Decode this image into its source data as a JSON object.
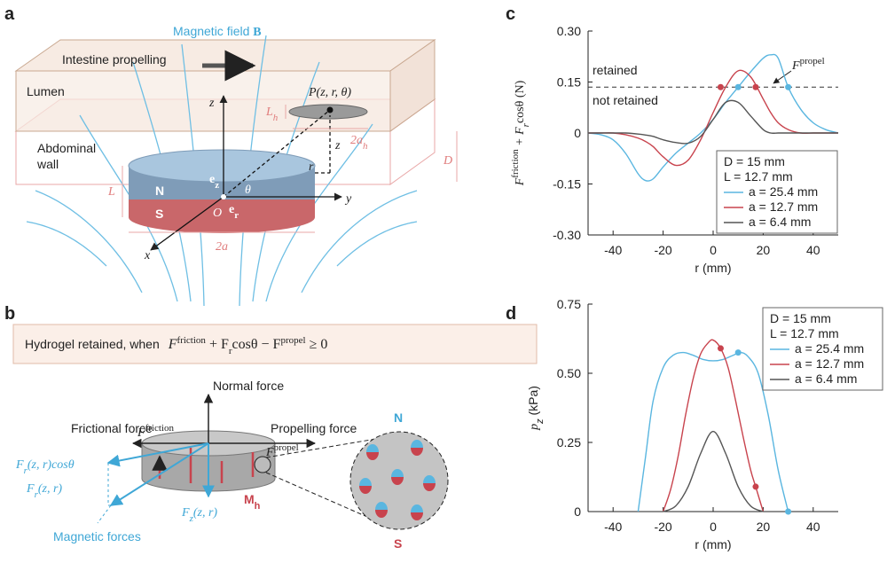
{
  "panel_labels": [
    "a",
    "b",
    "c",
    "d"
  ],
  "diagram_a": {
    "field": [
      "Magnetic field ",
      "B"
    ],
    "propelling": "Intestine propelling",
    "lumen": "Lumen",
    "wall": [
      "Abdominal",
      "wall"
    ],
    "point": "P(z, r, θ)",
    "z": "z",
    "y": "y",
    "x": "x",
    "r": "r",
    "z2": "z",
    "N": "N",
    "S": "S",
    "O": "O",
    "two_a": "2a",
    "L": "L",
    "Lh": [
      "L",
      "h"
    ],
    "two_ah": [
      "2a",
      "h"
    ],
    "D": "D",
    "ez": [
      "e",
      "z"
    ],
    "er": [
      "e",
      "r"
    ],
    "theta": "θ"
  },
  "diagram_b": {
    "condition": "Hydrogel retained, when",
    "formula": [
      "F",
      "friction",
      " + F",
      "r",
      "cosθ − F",
      "propel",
      " ≥ 0"
    ],
    "normal": "Normal force",
    "frictional": "Frictional force",
    "f_friction": [
      "F",
      "friction"
    ],
    "propelling": "Propelling force",
    "f_propel": [
      "F",
      "propel"
    ],
    "frcos": [
      "F",
      "r",
      "(z, r)cosθ"
    ],
    "fr": [
      "F",
      "r",
      "(z, r)"
    ],
    "fz": [
      "F",
      "z",
      "(z, r)"
    ],
    "mh": [
      "M",
      "h"
    ],
    "magnetic": "Magnetic forces",
    "N": "N",
    "S": "S"
  },
  "chart_data": [
    {
      "type": "line",
      "ylabel": [
        "F",
        "friction",
        " + F",
        "r",
        "cosθ (N)"
      ],
      "xlabel": "r (mm)",
      "xlim": [
        -50,
        50
      ],
      "xticks": [
        -40,
        -20,
        0,
        20,
        40
      ],
      "ylim": [
        -0.3,
        0.3
      ],
      "yticks": [
        {
          "value": -0.3,
          "label": "-0.30"
        },
        -0.15,
        0,
        0.15,
        {
          "value": 0.3,
          "label": "0.30"
        }
      ],
      "threshold": {
        "value": 0.135,
        "label": [
          "F",
          "propel"
        ]
      },
      "annotations": [
        "retained",
        "not retained"
      ],
      "legend_notes": [
        "D = 15 mm",
        "L = 12.7 mm"
      ],
      "legend": "lower right",
      "series": [
        {
          "name": "a = 25.4 mm",
          "color": "#5ab6e0",
          "x": [
            -50,
            -45,
            -40,
            -35,
            -30,
            -27,
            -24,
            -20,
            -15,
            -10,
            -5,
            0,
            5,
            10,
            15,
            20,
            23,
            26,
            30,
            35,
            40,
            45,
            50
          ],
          "values": [
            0,
            -0.005,
            -0.02,
            -0.06,
            -0.12,
            -0.14,
            -0.135,
            -0.1,
            -0.06,
            -0.03,
            0,
            0.04,
            0.09,
            0.135,
            0.18,
            0.22,
            0.23,
            0.22,
            0.135,
            0.07,
            0.03,
            0.01,
            0
          ],
          "marker_x": [
            10,
            30
          ],
          "marker_y": [
            0.135,
            0.135
          ]
        },
        {
          "name": "a = 12.7 mm",
          "color": "#c8434d",
          "x": [
            -50,
            -45,
            -40,
            -35,
            -30,
            -27,
            -24,
            -20,
            -15,
            -10,
            -5,
            0,
            5,
            10,
            15,
            20,
            23,
            26,
            30,
            35,
            40,
            45,
            50
          ],
          "values": [
            0,
            0,
            0,
            -0.005,
            -0.015,
            -0.025,
            -0.04,
            -0.07,
            -0.095,
            -0.08,
            -0.02,
            0.06,
            0.135,
            0.183,
            0.165,
            0.1,
            0.06,
            0.03,
            0.01,
            0,
            0,
            0,
            0
          ],
          "marker_x": [
            3,
            17
          ],
          "marker_y": [
            0.135,
            0.135
          ]
        },
        {
          "name": "a = 6.4 mm",
          "color": "#555555",
          "x": [
            -50,
            -45,
            -40,
            -35,
            -30,
            -27,
            -24,
            -20,
            -15,
            -10,
            -5,
            0,
            5,
            10,
            15,
            20,
            23,
            26,
            30,
            35,
            40,
            45,
            50
          ],
          "values": [
            0,
            0,
            0,
            0,
            -0.003,
            -0.006,
            -0.01,
            -0.02,
            -0.028,
            -0.03,
            -0.01,
            0.04,
            0.09,
            0.09,
            0.05,
            0.01,
            0,
            0,
            0,
            0,
            0,
            0,
            0
          ]
        }
      ]
    },
    {
      "type": "line",
      "ylabel": [
        "p",
        "z",
        " (kPa)"
      ],
      "xlabel": "r (mm)",
      "xlim": [
        -50,
        50
      ],
      "xticks": [
        -40,
        -20,
        0,
        20,
        40
      ],
      "ylim": [
        0,
        0.75
      ],
      "yticks": [
        0,
        0.25,
        {
          "value": 0.5,
          "label": "0.50"
        },
        0.75
      ],
      "legend_notes": [
        "D = 15 mm",
        "L = 12.7 mm"
      ],
      "legend": "upper right",
      "series": [
        {
          "name": "a = 25.4 mm",
          "color": "#5ab6e0",
          "x": [
            -30,
            -27,
            -24,
            -20,
            -16,
            -12,
            -8,
            -4,
            0,
            4,
            8,
            11,
            14,
            18,
            22,
            26,
            30
          ],
          "values": [
            0,
            0.2,
            0.4,
            0.52,
            0.565,
            0.575,
            0.565,
            0.55,
            0.545,
            0.55,
            0.565,
            0.575,
            0.56,
            0.5,
            0.35,
            0.15,
            0
          ],
          "marker_x": [
            10,
            30
          ],
          "marker_y": [
            0.575,
            0
          ]
        },
        {
          "name": "a = 12.7 mm",
          "color": "#c8434d",
          "x": [
            -20,
            -17,
            -14,
            -11,
            -8,
            -5,
            -2,
            0,
            3,
            6,
            9,
            12,
            15,
            17,
            20
          ],
          "values": [
            0,
            0.08,
            0.2,
            0.35,
            0.48,
            0.57,
            0.61,
            0.62,
            0.59,
            0.52,
            0.4,
            0.27,
            0.15,
            0.09,
            0
          ],
          "marker_x": [
            3,
            17
          ],
          "marker_y": [
            0.59,
            0.09
          ]
        },
        {
          "name": "a = 6.4 mm",
          "color": "#555555",
          "x": [
            -20,
            -15,
            -10,
            -5,
            0,
            5,
            10,
            15,
            20
          ],
          "values": [
            0,
            0.02,
            0.09,
            0.21,
            0.29,
            0.21,
            0.09,
            0.02,
            0
          ]
        }
      ]
    }
  ]
}
